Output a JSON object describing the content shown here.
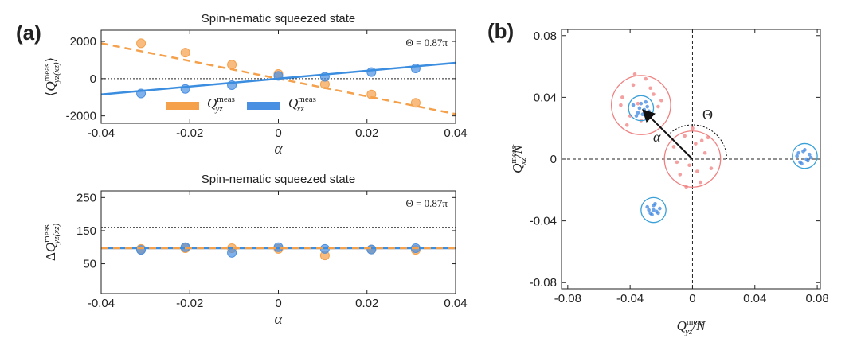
{
  "chart_data": [
    {
      "type": "line",
      "panel_label": "(a)",
      "title": "Spin-nematic squeezed state",
      "annotation": "Θ = 0.87π",
      "x_label": "α",
      "y_label": {
        "pre": "⟨",
        "base": "Q",
        "sup": "meas",
        "sub": "yz(xz)",
        "post": "⟩"
      },
      "x": [
        -0.031,
        -0.021,
        -0.0105,
        0,
        0.0105,
        0.021,
        0.031
      ],
      "series": [
        {
          "name": {
            "base": "Q",
            "sup": "meas",
            "sub": "yz"
          },
          "color": "#f5a04a",
          "values": [
            1900,
            1400,
            750,
            250,
            -300,
            -850,
            -1300
          ]
        },
        {
          "name": {
            "base": "Q",
            "sup": "meas",
            "sub": "xz"
          },
          "color": "#4a90e2",
          "values": [
            -800,
            -550,
            -350,
            150,
            100,
            350,
            550
          ]
        }
      ],
      "fits": [
        {
          "color": "#f5a04a",
          "dashed": true,
          "x": [
            -0.04,
            0.04
          ],
          "values": [
            1900,
            -1900
          ]
        },
        {
          "color": "#3b8de0",
          "dashed": false,
          "x": [
            -0.04,
            0.04
          ],
          "values": [
            -850,
            850
          ]
        }
      ],
      "ref_lines": [
        0
      ],
      "xlim": [
        -0.04,
        0.04
      ],
      "xticks": [
        -0.04,
        -0.02,
        0,
        0.02,
        0.04
      ],
      "ylim": [
        -2400,
        2600
      ],
      "yticks": [
        -2000,
        0,
        2000
      ],
      "legend": "bottom"
    },
    {
      "type": "line",
      "title": "Spin-nematic squeezed state",
      "annotation": "Θ = 0.87π",
      "x_label": "α",
      "y_label": {
        "pre": "Δ",
        "base": "Q",
        "sup": "meas",
        "sub": "yz(xz)"
      },
      "x": [
        -0.031,
        -0.021,
        -0.0105,
        0,
        0.0105,
        0.021,
        0.031
      ],
      "series": [
        {
          "color": "#f5a04a",
          "values": [
            95,
            97,
            97,
            95,
            75,
            93,
            92
          ]
        },
        {
          "color": "#4a90e2",
          "values": [
            92,
            100,
            83,
            100,
            95,
            93,
            97
          ]
        }
      ],
      "fits": [
        {
          "color": "#3b8de0",
          "dashed": false,
          "x": [
            -0.04,
            0.04
          ],
          "values": [
            97,
            97
          ]
        },
        {
          "color": "#f5a04a",
          "dashed": true,
          "x": [
            -0.04,
            0.04
          ],
          "values": [
            97,
            97
          ]
        }
      ],
      "ref_lines": [
        160
      ],
      "xlim": [
        -0.04,
        0.04
      ],
      "xticks": [
        -0.04,
        -0.02,
        0,
        0.02,
        0.04
      ],
      "ylim": [
        -40,
        270
      ],
      "yticks": [
        50,
        150,
        250
      ]
    },
    {
      "type": "scatter",
      "panel_label": "(b)",
      "x_label": {
        "base": "Q",
        "sup": "meas",
        "sub": "yz",
        "post": "/N"
      },
      "y_label": {
        "base": "Q",
        "sup": "meas",
        "sub": "xz",
        "post": "/N"
      },
      "arrow_label": "α",
      "angle_label": "Θ",
      "series": [
        {
          "color": "#f08080",
          "x": [
            -0.045,
            -0.04,
            -0.038,
            -0.035,
            -0.03,
            -0.028,
            -0.025,
            -0.022,
            -0.042,
            -0.033,
            -0.027,
            -0.037,
            -0.02,
            -0.046,
            -0.012,
            -0.008,
            -0.005,
            -0.002,
            0.002,
            0.005,
            0.008,
            0.012,
            -0.01,
            0.0,
            0.006,
            -0.004,
            0.01,
            0.003
          ],
          "values": [
            0.04,
            0.028,
            0.048,
            0.036,
            0.052,
            0.03,
            0.042,
            0.034,
            0.022,
            0.025,
            0.046,
            0.055,
            0.038,
            0.035,
            0.008,
            -0.01,
            0.015,
            -0.004,
            0.01,
            -0.015,
            0.004,
            -0.006,
            -0.002,
            0.02,
            0.012,
            -0.018,
            0.014,
            -0.008
          ]
        },
        {
          "color": "#3d85e0",
          "x": [
            -0.038,
            -0.035,
            -0.033,
            -0.031,
            -0.029,
            -0.036,
            -0.032,
            -0.03,
            -0.034,
            -0.028,
            -0.029,
            -0.027,
            -0.025,
            -0.023,
            -0.021,
            -0.026,
            -0.024,
            -0.028,
            -0.022,
            -0.025,
            0.067,
            0.069,
            0.071,
            0.073,
            0.075,
            0.07,
            0.072,
            0.074,
            0.068,
            0.076
          ],
          "values": [
            0.035,
            0.03,
            0.036,
            0.032,
            0.034,
            0.028,
            0.029,
            0.037,
            0.033,
            0.031,
            -0.031,
            -0.035,
            -0.03,
            -0.034,
            -0.032,
            -0.036,
            -0.029,
            -0.033,
            -0.035,
            -0.033,
            0.002,
            -0.002,
            0.005,
            0.0,
            0.003,
            -0.003,
            0.006,
            -0.001,
            0.004,
            0.001
          ]
        }
      ],
      "circles": [
        {
          "color": "#f08080",
          "x": -0.033,
          "y": 0.035,
          "r": 0.019
        },
        {
          "color": "#f08080",
          "x": 0,
          "y": 0,
          "r": 0.018
        },
        {
          "color": "#3aa0d8",
          "x": -0.033,
          "y": 0.033,
          "r": 0.008
        },
        {
          "color": "#3aa0d8",
          "x": -0.025,
          "y": -0.033,
          "r": 0.008
        },
        {
          "color": "#3aa0d8",
          "x": 0.072,
          "y": 0.002,
          "r": 0.008
        }
      ],
      "xlim": [
        -0.084,
        0.082
      ],
      "xticks": [
        -0.08,
        -0.04,
        0,
        0.04,
        0.08
      ],
      "ylim": [
        -0.084,
        0.084
      ],
      "yticks": [
        -0.08,
        -0.04,
        0,
        0.04,
        0.08
      ]
    }
  ]
}
